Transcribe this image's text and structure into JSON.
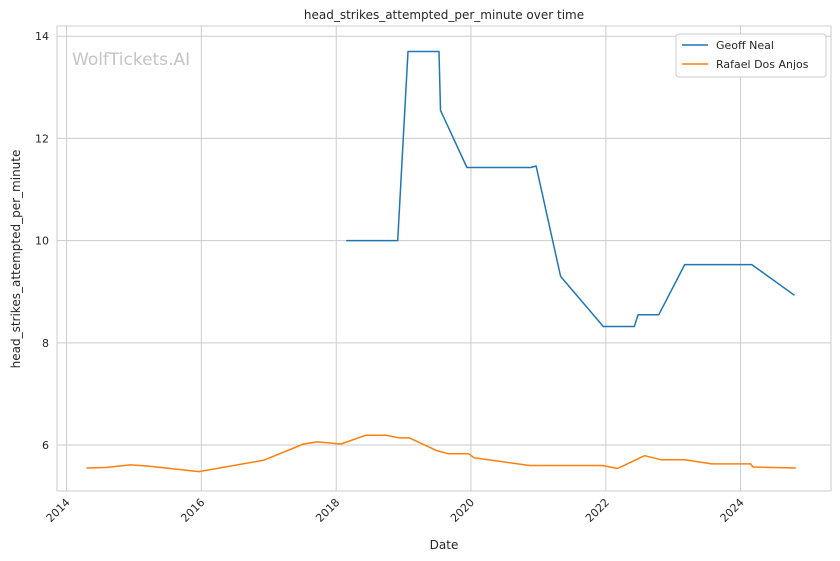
{
  "chart_data": {
    "type": "line",
    "title": "head_strikes_attempted_per_minute over time",
    "xlabel": "Date",
    "ylabel": "head_strikes_attempted_per_minute",
    "watermark": "WolfTickets.AI",
    "xlim": [
      "2013-11-10",
      "2025-05-05"
    ],
    "ylim": [
      5.1,
      14.2
    ],
    "x_ticks": [
      "2014",
      "2016",
      "2018",
      "2020",
      "2022",
      "2024"
    ],
    "y_ticks": [
      6,
      8,
      10,
      12,
      14
    ],
    "grid": true,
    "legend_position": "top-right",
    "series": [
      {
        "name": "Geoff Neal",
        "color": "#1f77b4",
        "points": [
          [
            "2018-02-24",
            10.0
          ],
          [
            "2018-11-30",
            10.0
          ],
          [
            "2019-01-25",
            13.7
          ],
          [
            "2019-07-12",
            13.7
          ],
          [
            "2019-07-20",
            12.55
          ],
          [
            "2019-12-10",
            11.43
          ],
          [
            "2020-11-20",
            11.43
          ],
          [
            "2020-12-19",
            11.46
          ],
          [
            "2021-05-01",
            9.3
          ],
          [
            "2021-12-18",
            8.32
          ],
          [
            "2022-06-04",
            8.32
          ],
          [
            "2022-06-25",
            8.55
          ],
          [
            "2022-10-15",
            8.55
          ],
          [
            "2023-03-04",
            9.53
          ],
          [
            "2024-03-02",
            9.53
          ],
          [
            "2024-10-19",
            8.93
          ]
        ]
      },
      {
        "name": "Rafael Dos Anjos",
        "color": "#ff7f0e",
        "points": [
          [
            "2014-04-19",
            5.55
          ],
          [
            "2014-08-02",
            5.56
          ],
          [
            "2014-12-13",
            5.61
          ],
          [
            "2015-03-14",
            5.59
          ],
          [
            "2015-12-19",
            5.48
          ],
          [
            "2016-12-03",
            5.7
          ],
          [
            "2017-07-08",
            6.02
          ],
          [
            "2017-09-20",
            6.06
          ],
          [
            "2018-01-27",
            6.02
          ],
          [
            "2018-06-09",
            6.19
          ],
          [
            "2018-09-29",
            6.19
          ],
          [
            "2018-12-08",
            6.14
          ],
          [
            "2019-02-02",
            6.14
          ],
          [
            "2019-06-29",
            5.89
          ],
          [
            "2019-08-31",
            5.83
          ],
          [
            "2019-12-20",
            5.83
          ],
          [
            "2020-01-18",
            5.75
          ],
          [
            "2020-11-14",
            5.6
          ],
          [
            "2021-12-14",
            5.6
          ],
          [
            "2022-03-05",
            5.54
          ],
          [
            "2022-07-30",
            5.79
          ],
          [
            "2022-10-29",
            5.71
          ],
          [
            "2023-03-04",
            5.71
          ],
          [
            "2023-07-29",
            5.63
          ],
          [
            "2024-02-24",
            5.63
          ],
          [
            "2024-03-09",
            5.57
          ],
          [
            "2024-10-26",
            5.55
          ]
        ]
      }
    ]
  }
}
